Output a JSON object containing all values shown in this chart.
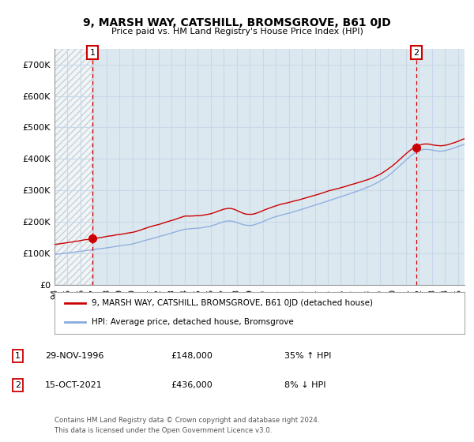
{
  "title": "9, MARSH WAY, CATSHILL, BROMSGROVE, B61 0JD",
  "subtitle": "Price paid vs. HM Land Registry's House Price Index (HPI)",
  "legend_line1": "9, MARSH WAY, CATSHILL, BROMSGROVE, B61 0JD (detached house)",
  "legend_line2": "HPI: Average price, detached house, Bromsgrove",
  "sale1_label": "1",
  "sale1_date": "29-NOV-1996",
  "sale1_price": "£148,000",
  "sale1_hpi": "35% ↑ HPI",
  "sale2_label": "2",
  "sale2_date": "15-OCT-2021",
  "sale2_price": "£436,000",
  "sale2_hpi": "8% ↓ HPI",
  "footer": "Contains HM Land Registry data © Crown copyright and database right 2024.\nThis data is licensed under the Open Government Licence v3.0.",
  "sale_color": "#cc0000",
  "hpi_color": "#88aadd",
  "marker_color": "#cc0000",
  "dashed_vline_color": "#cc0000",
  "grid_color": "#c8d8e8",
  "bg_color": "#ffffff",
  "plot_bg": "#dce8f0",
  "ylim": [
    0,
    750000
  ],
  "yticks": [
    0,
    100000,
    200000,
    300000,
    400000,
    500000,
    600000,
    700000
  ],
  "ytick_labels": [
    "£0",
    "£100K",
    "£200K",
    "£300K",
    "£400K",
    "£500K",
    "£600K",
    "£700K"
  ],
  "sale1_x": 1996.92,
  "sale2_x": 2021.79,
  "sale1_y": 148000,
  "sale2_y": 436000,
  "xlim_left": 1994.0,
  "xlim_right": 2025.5
}
